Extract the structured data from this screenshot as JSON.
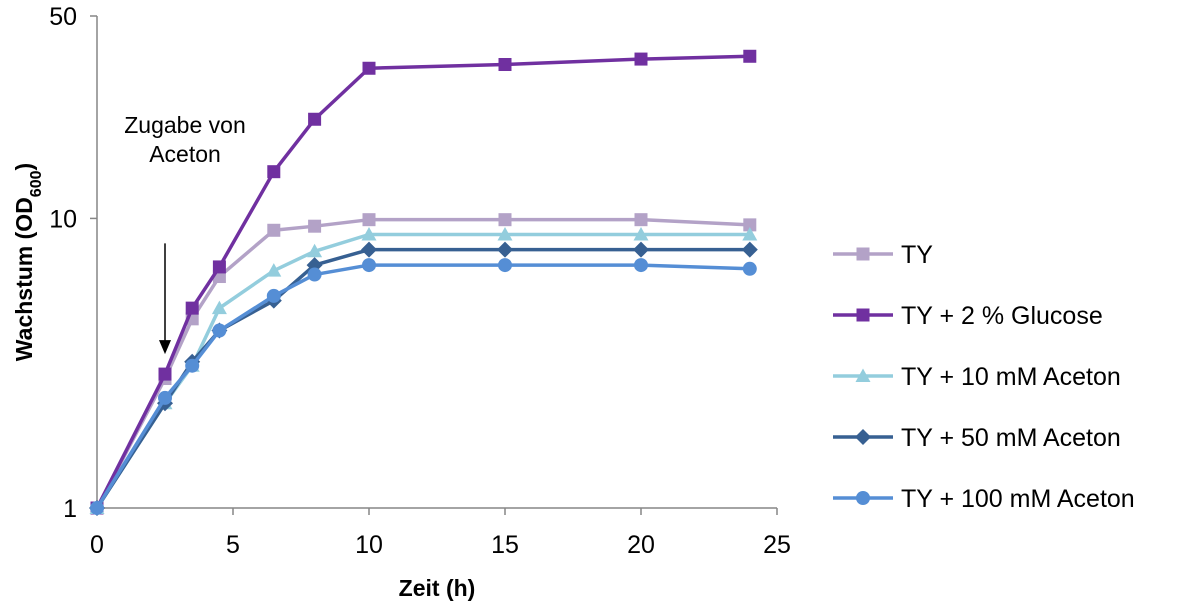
{
  "chart_data": {
    "type": "line",
    "yscale": "log",
    "xlabel": "Zeit (h)",
    "ylabel": "Wachstum (OD",
    "ylabel_sub": "600",
    "ylabel_close": ")",
    "xlim": [
      0,
      25
    ],
    "ylim": [
      1,
      50
    ],
    "xticks": [
      0,
      5,
      10,
      15,
      20,
      25
    ],
    "yticks": [
      1,
      10,
      50
    ],
    "grid": false,
    "legend_position": "right",
    "annotation": {
      "lines": [
        "Zugabe von",
        "Aceton"
      ],
      "x": 2.5,
      "y_from": 8.2,
      "y_to": 3.4
    },
    "series": [
      {
        "name": "TY",
        "color": "#b3a2c7",
        "marker": "square",
        "x": [
          0,
          2.5,
          3.5,
          4.5,
          6.5,
          8,
          10,
          15,
          20,
          24
        ],
        "y": [
          1,
          2.8,
          4.5,
          6.3,
          9.1,
          9.4,
          9.9,
          9.9,
          9.9,
          9.5
        ]
      },
      {
        "name": "TY + 2 % Glucose",
        "color": "#7030a0",
        "marker": "square",
        "x": [
          0,
          2.5,
          3.5,
          4.5,
          6.5,
          8,
          10,
          15,
          20,
          24
        ],
        "y": [
          1,
          2.9,
          4.9,
          6.8,
          14.5,
          22,
          33,
          34,
          35.5,
          36.3
        ]
      },
      {
        "name": "TY + 10 mM Aceton",
        "color": "#93cddd",
        "marker": "triangle",
        "x": [
          0,
          2.5,
          3.5,
          4.5,
          6.5,
          8,
          10,
          15,
          20,
          24
        ],
        "y": [
          1,
          2.3,
          3.1,
          4.9,
          6.6,
          7.7,
          8.8,
          8.8,
          8.8,
          8.8
        ]
      },
      {
        "name": "TY + 50 mM Aceton",
        "color": "#376092",
        "marker": "diamond",
        "x": [
          0,
          2.5,
          3.5,
          4.5,
          6.5,
          8,
          10,
          15,
          20,
          24
        ],
        "y": [
          1,
          2.3,
          3.2,
          4.1,
          5.2,
          6.9,
          7.8,
          7.8,
          7.8,
          7.8
        ]
      },
      {
        "name": "TY + 100 mM Aceton",
        "color": "#558ed5",
        "marker": "circle",
        "x": [
          0,
          2.5,
          3.5,
          4.5,
          6.5,
          8,
          10,
          15,
          20,
          24
        ],
        "y": [
          1,
          2.4,
          3.1,
          4.1,
          5.4,
          6.4,
          6.9,
          6.9,
          6.9,
          6.7
        ]
      }
    ]
  }
}
